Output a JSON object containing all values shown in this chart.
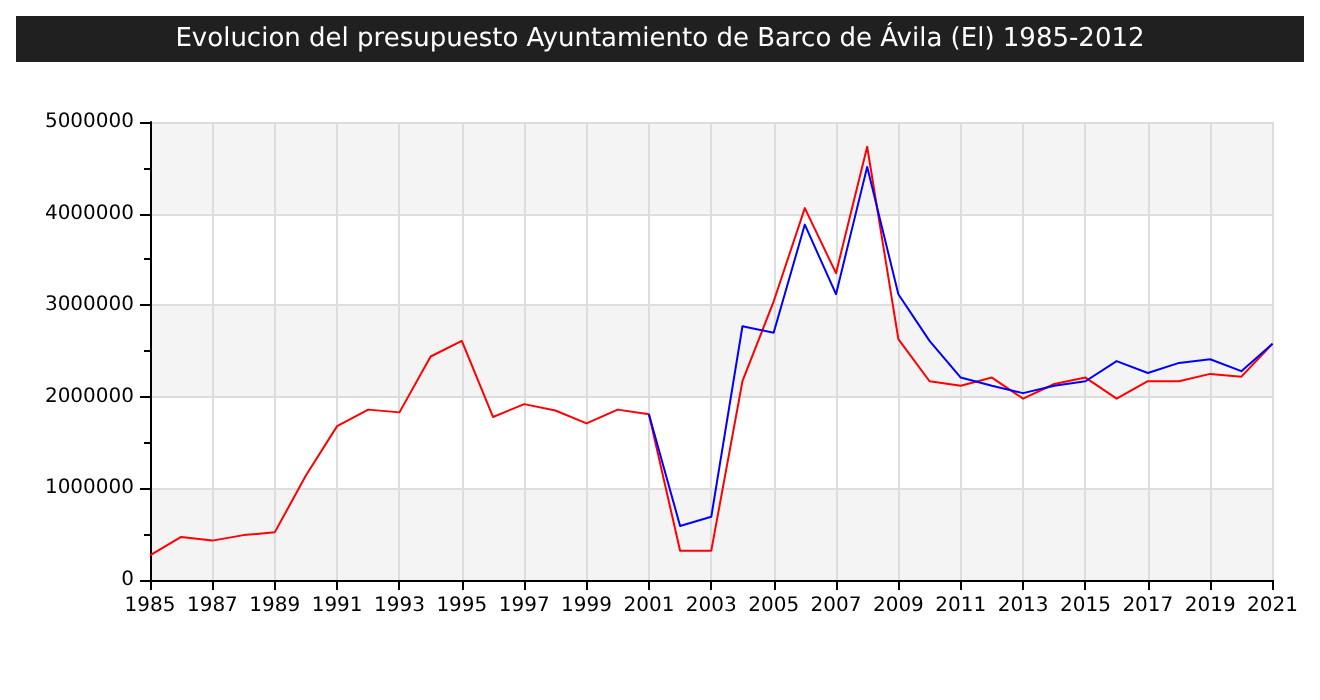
{
  "chart_data": {
    "type": "line",
    "title": "Evolucion del presupuesto Ayuntamiento de Barco de Ávila (El) 1985-2012",
    "x": [
      1985,
      1986,
      1987,
      1988,
      1989,
      1990,
      1991,
      1992,
      1993,
      1994,
      1995,
      1996,
      1997,
      1998,
      1999,
      2000,
      2001,
      2002,
      2003,
      2004,
      2005,
      2006,
      2007,
      2008,
      2009,
      2010,
      2011,
      2012,
      2013,
      2014,
      2015,
      2016,
      2017,
      2018,
      2019,
      2020,
      2021
    ],
    "series": [
      {
        "color": "#ff0000",
        "values": [
          270000,
          470000,
          430000,
          490000,
          520000,
          1140000,
          1680000,
          1860000,
          1830000,
          2440000,
          2610000,
          1780000,
          1920000,
          1850000,
          1710000,
          1860000,
          1810000,
          320000,
          320000,
          2170000,
          3040000,
          4060000,
          3350000,
          4730000,
          2630000,
          2170000,
          2120000,
          2210000,
          1980000,
          2140000,
          2210000,
          1980000,
          2170000,
          2170000,
          2250000,
          2220000,
          2580000
        ]
      },
      {
        "color": "#0000ff",
        "values": [
          null,
          null,
          null,
          null,
          null,
          null,
          null,
          null,
          null,
          null,
          null,
          null,
          null,
          null,
          null,
          null,
          1810000,
          590000,
          690000,
          2770000,
          2700000,
          3880000,
          3120000,
          4510000,
          3120000,
          2610000,
          2210000,
          2120000,
          2040000,
          2120000,
          2170000,
          2390000,
          2260000,
          2370000,
          2410000,
          2280000,
          2580000
        ]
      }
    ],
    "xlim": [
      1985,
      2021
    ],
    "xticks": [
      1985,
      1987,
      1989,
      1991,
      1993,
      1995,
      1997,
      1999,
      2001,
      2003,
      2005,
      2007,
      2009,
      2011,
      2013,
      2015,
      2017,
      2019,
      2021
    ],
    "ylim": [
      0,
      5000000
    ],
    "yticks": [
      0,
      1000000,
      2000000,
      3000000,
      4000000,
      5000000
    ],
    "grid": true,
    "marker": "none",
    "line_style": "solid"
  }
}
